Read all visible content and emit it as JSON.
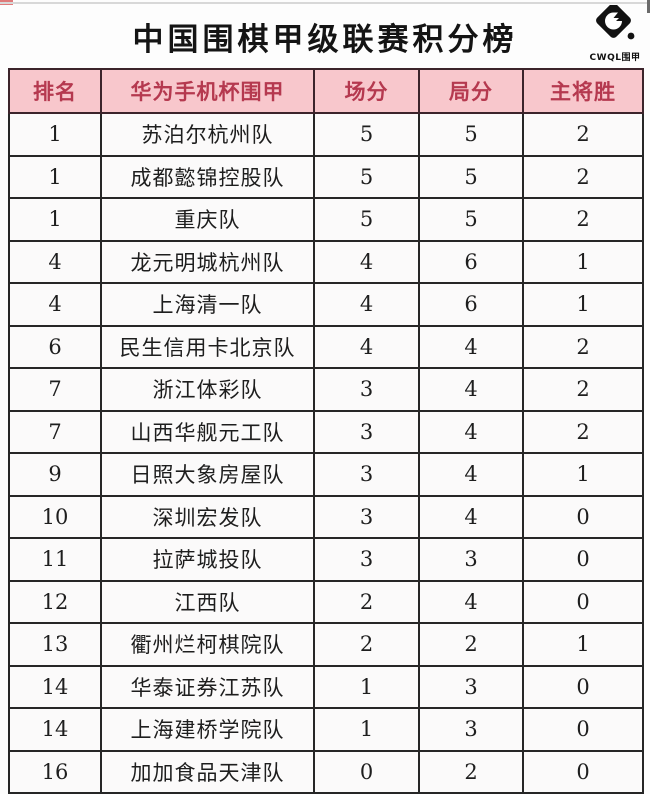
{
  "page": {
    "title": "中国围棋甲级联赛积分榜"
  },
  "logo": {
    "text": "CWQL围甲",
    "mark": "diamond-go-logo"
  },
  "table": {
    "headers": [
      "排名",
      "华为手机杯围甲",
      "场分",
      "局分",
      "主将胜"
    ],
    "rows": [
      [
        "1",
        "苏泊尔杭州队",
        "5",
        "5",
        "2"
      ],
      [
        "1",
        "成都懿锦控股队",
        "5",
        "5",
        "2"
      ],
      [
        "1",
        "重庆队",
        "5",
        "5",
        "2"
      ],
      [
        "4",
        "龙元明城杭州队",
        "4",
        "6",
        "1"
      ],
      [
        "4",
        "上海清一队",
        "4",
        "6",
        "1"
      ],
      [
        "6",
        "民生信用卡北京队",
        "4",
        "4",
        "2"
      ],
      [
        "7",
        "浙江体彩队",
        "3",
        "4",
        "2"
      ],
      [
        "7",
        "山西华舰元工队",
        "3",
        "4",
        "2"
      ],
      [
        "9",
        "日照大象房屋队",
        "3",
        "4",
        "1"
      ],
      [
        "10",
        "深圳宏发队",
        "3",
        "4",
        "0"
      ],
      [
        "11",
        "拉萨城投队",
        "3",
        "3",
        "0"
      ],
      [
        "12",
        "江西队",
        "2",
        "4",
        "0"
      ],
      [
        "13",
        "衢州烂柯棋院队",
        "2",
        "2",
        "1"
      ],
      [
        "14",
        "华泰证券江苏队",
        "1",
        "3",
        "0"
      ],
      [
        "14",
        "上海建桥学院队",
        "1",
        "3",
        "0"
      ],
      [
        "16",
        "加加食品天津队",
        "0",
        "2",
        "0"
      ]
    ]
  },
  "colors": {
    "header_bg": "#f8c7cc",
    "header_text": "#b5394f",
    "header_border": "#3c242b",
    "cell_bg": "#fbfafa",
    "cell_border": "#262626",
    "title_text": "#141414"
  },
  "chart_data": {
    "type": "table",
    "title": "中国围棋甲级联赛积分榜",
    "columns": [
      "排名",
      "华为手机杯围甲",
      "场分",
      "局分",
      "主将胜"
    ],
    "rows": [
      {
        "rank": 1,
        "team": "苏泊尔杭州队",
        "match_points": 5,
        "game_points": 5,
        "captain_wins": 2
      },
      {
        "rank": 1,
        "team": "成都懿锦控股队",
        "match_points": 5,
        "game_points": 5,
        "captain_wins": 2
      },
      {
        "rank": 1,
        "team": "重庆队",
        "match_points": 5,
        "game_points": 5,
        "captain_wins": 2
      },
      {
        "rank": 4,
        "team": "龙元明城杭州队",
        "match_points": 4,
        "game_points": 6,
        "captain_wins": 1
      },
      {
        "rank": 4,
        "team": "上海清一队",
        "match_points": 4,
        "game_points": 6,
        "captain_wins": 1
      },
      {
        "rank": 6,
        "team": "民生信用卡北京队",
        "match_points": 4,
        "game_points": 4,
        "captain_wins": 2
      },
      {
        "rank": 7,
        "team": "浙江体彩队",
        "match_points": 3,
        "game_points": 4,
        "captain_wins": 2
      },
      {
        "rank": 7,
        "team": "山西华舰元工队",
        "match_points": 3,
        "game_points": 4,
        "captain_wins": 2
      },
      {
        "rank": 9,
        "team": "日照大象房屋队",
        "match_points": 3,
        "game_points": 4,
        "captain_wins": 1
      },
      {
        "rank": 10,
        "team": "深圳宏发队",
        "match_points": 3,
        "game_points": 4,
        "captain_wins": 0
      },
      {
        "rank": 11,
        "team": "拉萨城投队",
        "match_points": 3,
        "game_points": 3,
        "captain_wins": 0
      },
      {
        "rank": 12,
        "team": "江西队",
        "match_points": 2,
        "game_points": 4,
        "captain_wins": 0
      },
      {
        "rank": 13,
        "team": "衢州烂柯棋院队",
        "match_points": 2,
        "game_points": 2,
        "captain_wins": 1
      },
      {
        "rank": 14,
        "team": "华泰证券江苏队",
        "match_points": 1,
        "game_points": 3,
        "captain_wins": 0
      },
      {
        "rank": 14,
        "team": "上海建桥学院队",
        "match_points": 1,
        "game_points": 3,
        "captain_wins": 0
      },
      {
        "rank": 16,
        "team": "加加食品天津队",
        "match_points": 0,
        "game_points": 2,
        "captain_wins": 0
      }
    ]
  }
}
